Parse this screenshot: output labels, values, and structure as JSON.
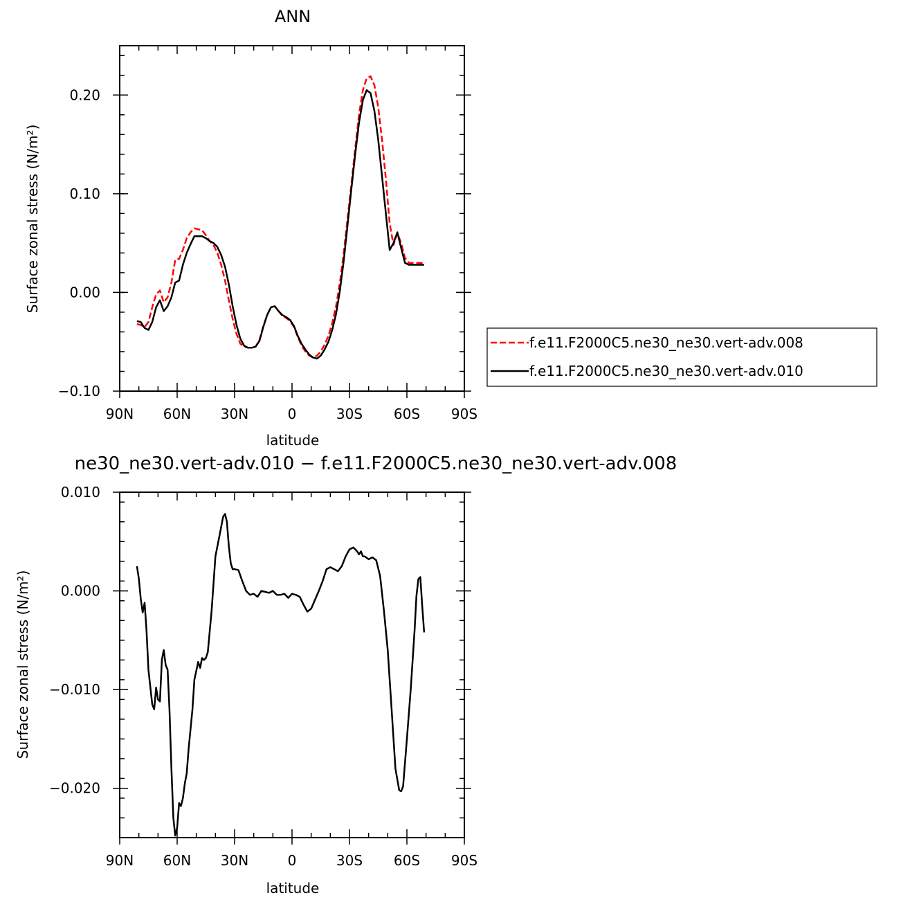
{
  "chart_data": [
    {
      "type": "line",
      "title": "ANN",
      "xlabel": "latitude",
      "ylabel": "Surface zonal stress (N/m²)",
      "xlim": [
        90,
        -90
      ],
      "ylim": [
        -0.1,
        0.25
      ],
      "x_ticks": [
        90,
        60,
        30,
        0,
        -30,
        -60,
        -90
      ],
      "x_tick_labels": [
        "90N",
        "60N",
        "30N",
        "0",
        "30S",
        "60S",
        "90S"
      ],
      "y_ticks": [
        -0.1,
        0.0,
        0.1,
        0.2
      ],
      "y_tick_labels": [
        "−0.10",
        "0.00",
        "0.10",
        "0.20"
      ],
      "legend_position": "right",
      "series": [
        {
          "name": "f.e11.F2000C5.ne30_ne30.vert-adv.008",
          "color": "#ff0000",
          "dash": true,
          "x": [
            81,
            79,
            77,
            75,
            73,
            71,
            69,
            67,
            65,
            63,
            61,
            59,
            57,
            55,
            53,
            51,
            49,
            47,
            45,
            43,
            41,
            39,
            37,
            35,
            33,
            31,
            29,
            27,
            25,
            23,
            21,
            19,
            17,
            15,
            13,
            11,
            9,
            7,
            5,
            3,
            1,
            -1,
            -3,
            -5,
            -7,
            -9,
            -11,
            -13,
            -15,
            -17,
            -19,
            -21,
            -23,
            -25,
            -27,
            -29,
            -31,
            -33,
            -35,
            -37,
            -39,
            -41,
            -43,
            -45,
            -47,
            -49,
            -51,
            -53,
            -55,
            -57,
            -59,
            -61,
            -63,
            -65,
            -66,
            -67,
            -68,
            -69
          ],
          "y": [
            -0.032,
            -0.033,
            -0.035,
            -0.03,
            -0.015,
            -0.002,
            0.002,
            -0.01,
            -0.005,
            0.01,
            0.033,
            0.034,
            0.043,
            0.055,
            0.061,
            0.065,
            0.064,
            0.063,
            0.058,
            0.052,
            0.048,
            0.04,
            0.028,
            0.012,
            -0.008,
            -0.027,
            -0.042,
            -0.052,
            -0.055,
            -0.056,
            -0.056,
            -0.055,
            -0.048,
            -0.034,
            -0.023,
            -0.015,
            -0.014,
            -0.019,
            -0.024,
            -0.026,
            -0.029,
            -0.035,
            -0.045,
            -0.054,
            -0.06,
            -0.064,
            -0.066,
            -0.064,
            -0.06,
            -0.053,
            -0.044,
            -0.031,
            -0.014,
            0.01,
            0.04,
            0.075,
            0.11,
            0.146,
            0.18,
            0.205,
            0.217,
            0.219,
            0.21,
            0.188,
            0.155,
            0.115,
            0.07,
            0.048,
            0.06,
            0.05,
            0.035,
            0.03,
            0.03,
            0.03,
            0.03,
            0.03,
            0.03,
            0.03
          ]
        },
        {
          "name": "f.e11.F2000C5.ne30_ne30.vert-adv.010",
          "color": "#000000",
          "dash": false,
          "x": [
            81,
            79,
            77,
            75,
            73,
            71,
            69,
            67,
            65,
            63,
            61,
            59,
            57,
            55,
            53,
            51,
            49,
            47,
            45,
            43,
            41,
            39,
            37,
            35,
            33,
            31,
            29,
            27,
            25,
            23,
            21,
            19,
            17,
            15,
            13,
            11,
            9,
            7,
            5,
            3,
            1,
            -1,
            -3,
            -5,
            -7,
            -9,
            -11,
            -13,
            -15,
            -17,
            -19,
            -21,
            -23,
            -25,
            -27,
            -29,
            -31,
            -33,
            -35,
            -37,
            -39,
            -41,
            -43,
            -45,
            -47,
            -49,
            -51,
            -53,
            -55,
            -57,
            -59,
            -61,
            -63,
            -65,
            -66,
            -67,
            -68,
            -69
          ],
          "y": [
            -0.029,
            -0.03,
            -0.036,
            -0.038,
            -0.03,
            -0.015,
            -0.008,
            -0.019,
            -0.014,
            -0.005,
            0.01,
            0.012,
            0.028,
            0.04,
            0.049,
            0.057,
            0.057,
            0.057,
            0.055,
            0.052,
            0.05,
            0.046,
            0.038,
            0.026,
            0.008,
            -0.014,
            -0.033,
            -0.047,
            -0.054,
            -0.056,
            -0.056,
            -0.055,
            -0.049,
            -0.035,
            -0.023,
            -0.015,
            -0.014,
            -0.019,
            -0.023,
            -0.025,
            -0.028,
            -0.034,
            -0.044,
            -0.052,
            -0.058,
            -0.063,
            -0.066,
            -0.067,
            -0.064,
            -0.058,
            -0.05,
            -0.038,
            -0.022,
            0.002,
            0.032,
            0.068,
            0.105,
            0.14,
            0.172,
            0.195,
            0.205,
            0.202,
            0.184,
            0.155,
            0.118,
            0.08,
            0.043,
            0.05,
            0.061,
            0.045,
            0.03,
            0.028,
            0.028,
            0.028,
            0.028,
            0.028,
            0.028,
            0.028
          ]
        }
      ]
    },
    {
      "type": "line",
      "title": "ne30_ne30.vert-adv.010 − f.e11.F2000C5.ne30_ne30.vert-adv.008",
      "xlabel": "latitude",
      "ylabel": "Surface zonal stress (N/m²)",
      "xlim": [
        90,
        -90
      ],
      "ylim": [
        -0.025,
        0.01
      ],
      "x_ticks": [
        90,
        60,
        30,
        0,
        -30,
        -60,
        -90
      ],
      "x_tick_labels": [
        "90N",
        "60N",
        "30N",
        "0",
        "30S",
        "60S",
        "90S"
      ],
      "y_ticks": [
        -0.02,
        -0.01,
        0.0,
        0.01
      ],
      "y_tick_labels": [
        "−0.020",
        "−0.010",
        "0.000",
        "0.010"
      ],
      "series": [
        {
          "name": "",
          "color": "#000000",
          "dash": false,
          "x": [
            81,
            80,
            79,
            78,
            77,
            76,
            75,
            73,
            72,
            71,
            70,
            69,
            68,
            67,
            66,
            65,
            64,
            63,
            62,
            61,
            60,
            59,
            58,
            57,
            56,
            55,
            54,
            52,
            51,
            49,
            48,
            47,
            46,
            45,
            44,
            42,
            40,
            38,
            36,
            35,
            34,
            33,
            32,
            31,
            30,
            28,
            26,
            24,
            22,
            20,
            18,
            16,
            14,
            12,
            10,
            8,
            6,
            4,
            2,
            0,
            -2,
            -4,
            -6,
            -8,
            -10,
            -12,
            -14,
            -16,
            -18,
            -20,
            -22,
            -24,
            -26,
            -28,
            -30,
            -32,
            -34,
            -35,
            -36,
            -37,
            -38,
            -40,
            -42,
            -44,
            -46,
            -48,
            -50,
            -52,
            -54,
            -56,
            -57,
            -58,
            -60,
            -62,
            -64,
            -65,
            -66,
            -67,
            -68,
            -69
          ],
          "y": [
            0.0025,
            0.0012,
            -0.0008,
            -0.0022,
            -0.0012,
            -0.004,
            -0.008,
            -0.0115,
            -0.012,
            -0.0098,
            -0.011,
            -0.0112,
            -0.007,
            -0.006,
            -0.0075,
            -0.008,
            -0.012,
            -0.018,
            -0.023,
            -0.0248,
            -0.024,
            -0.0215,
            -0.0218,
            -0.021,
            -0.0195,
            -0.0185,
            -0.016,
            -0.012,
            -0.009,
            -0.0072,
            -0.0078,
            -0.0068,
            -0.007,
            -0.0068,
            -0.0062,
            -0.002,
            0.0035,
            0.0055,
            0.0075,
            0.0078,
            0.007,
            0.0045,
            0.0028,
            0.0022,
            0.0022,
            0.0021,
            0.001,
            0.0,
            -0.0004,
            -0.0003,
            -0.0006,
            0.0,
            -0.0001,
            -0.0002,
            0.0,
            -0.0004,
            -0.0004,
            -0.0003,
            -0.0007,
            -0.0003,
            -0.0004,
            -0.0006,
            -0.0014,
            -0.0021,
            -0.0018,
            -0.0009,
            0.0,
            0.001,
            0.0022,
            0.0024,
            0.0022,
            0.002,
            0.0025,
            0.0035,
            0.0042,
            0.0044,
            0.004,
            0.0037,
            0.004,
            0.0035,
            0.0035,
            0.0032,
            0.0034,
            0.0031,
            0.0015,
            -0.002,
            -0.006,
            -0.012,
            -0.018,
            -0.0202,
            -0.0203,
            -0.0198,
            -0.015,
            -0.01,
            -0.004,
            -0.0005,
            0.0012,
            0.0014,
            -0.0015,
            -0.0042
          ]
        }
      ]
    }
  ]
}
